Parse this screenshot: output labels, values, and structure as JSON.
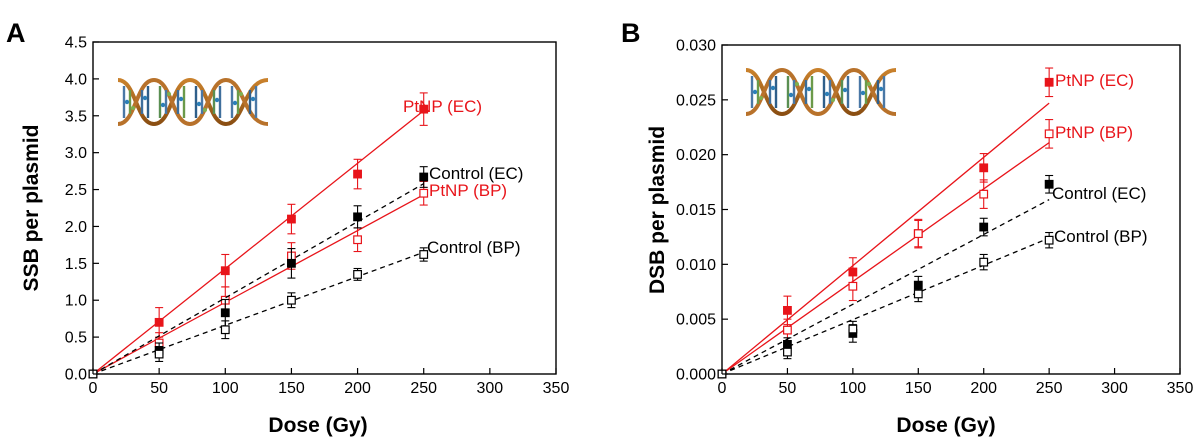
{
  "colors": {
    "ptnp": "#e8141a",
    "control": "#000000"
  },
  "chart_data": [
    {
      "panel": "A",
      "type": "scatter",
      "xlabel": "Dose (Gy)",
      "ylabel": "SSB per plasmid",
      "xlim": [
        0,
        350
      ],
      "ylim": [
        0,
        4.5
      ],
      "xticks": [
        "0",
        "50",
        "100",
        "150",
        "200",
        "250",
        "300",
        "350"
      ],
      "yticks": [
        "0.0",
        "0.5",
        "1.0",
        "1.5",
        "2.0",
        "2.5",
        "3.0",
        "3.5",
        "4.0",
        "4.5"
      ],
      "inset": "dna-double-helix",
      "series": [
        {
          "name": "PtNP (EC)",
          "color": "#e8141a",
          "marker": "filled-square",
          "line": "solid",
          "fit_end": 3.57,
          "points": [
            [
              0,
              0
            ],
            [
              50,
              0.7
            ],
            [
              100,
              1.4
            ],
            [
              150,
              2.1
            ],
            [
              200,
              2.71
            ],
            [
              250,
              3.59
            ]
          ],
          "errors": [
            0,
            0.2,
            0.22,
            0.2,
            0.2,
            0.22
          ]
        },
        {
          "name": "PtNP (BP)",
          "color": "#e8141a",
          "marker": "open-square",
          "line": "solid",
          "fit_end": 2.43,
          "points": [
            [
              0,
              0
            ],
            [
              50,
              0.42
            ],
            [
              100,
              1.0
            ],
            [
              150,
              1.6
            ],
            [
              200,
              1.82
            ],
            [
              250,
              2.45
            ]
          ],
          "errors": [
            0,
            0.14,
            0.18,
            0.18,
            0.16,
            0.16
          ]
        },
        {
          "name": "Control (EC)",
          "color": "#000000",
          "marker": "filled-square",
          "line": "dashed",
          "fit_end": 2.58,
          "points": [
            [
              0,
              0
            ],
            [
              50,
              0.32
            ],
            [
              100,
              0.83
            ],
            [
              150,
              1.5
            ],
            [
              200,
              2.13
            ],
            [
              250,
              2.67
            ]
          ],
          "errors": [
            0,
            0.1,
            0.18,
            0.2,
            0.15,
            0.14
          ]
        },
        {
          "name": "Control (BP)",
          "color": "#000000",
          "marker": "open-square",
          "line": "dashed",
          "fit_end": 1.65,
          "points": [
            [
              0,
              0
            ],
            [
              50,
              0.27
            ],
            [
              100,
              0.6
            ],
            [
              150,
              1.0
            ],
            [
              200,
              1.35
            ],
            [
              250,
              1.62
            ]
          ],
          "errors": [
            0,
            0.1,
            0.12,
            0.1,
            0.08,
            0.09
          ]
        }
      ]
    },
    {
      "panel": "B",
      "type": "scatter",
      "xlabel": "Dose (Gy)",
      "ylabel": "DSB per plasmid",
      "xlim": [
        0,
        350
      ],
      "ylim": [
        0,
        0.03
      ],
      "xticks": [
        "0",
        "50",
        "100",
        "150",
        "200",
        "250",
        "300",
        "350"
      ],
      "yticks": [
        "0.000",
        "0.005",
        "0.010",
        "0.015",
        "0.020",
        "0.025",
        "0.030"
      ],
      "inset": "dna-double-helix",
      "series": [
        {
          "name": "PtNP (EC)",
          "color": "#e8141a",
          "marker": "filled-square",
          "line": "solid",
          "fit_end": 0.0247,
          "points": [
            [
              0,
              0
            ],
            [
              50,
              0.0058
            ],
            [
              100,
              0.0093
            ],
            [
              150,
              0.0128
            ],
            [
              200,
              0.0188
            ],
            [
              250,
              0.0266
            ]
          ],
          "errors": [
            0,
            0.0013,
            0.0013,
            0.0013,
            0.0013,
            0.0013
          ]
        },
        {
          "name": "PtNP (BP)",
          "color": "#e8141a",
          "marker": "open-square",
          "line": "solid",
          "fit_end": 0.0211,
          "points": [
            [
              0,
              0
            ],
            [
              50,
              0.004
            ],
            [
              100,
              0.008
            ],
            [
              150,
              0.0128
            ],
            [
              200,
              0.0164
            ],
            [
              250,
              0.0219
            ]
          ],
          "errors": [
            0,
            0.001,
            0.0013,
            0.0012,
            0.0013,
            0.0013
          ]
        },
        {
          "name": "Control (EC)",
          "color": "#000000",
          "marker": "filled-square",
          "line": "dashed",
          "fit_end": 0.0159,
          "points": [
            [
              0,
              0
            ],
            [
              50,
              0.0027
            ],
            [
              100,
              0.0037
            ],
            [
              150,
              0.0081
            ],
            [
              200,
              0.0134
            ],
            [
              250,
              0.0173
            ]
          ],
          "errors": [
            0,
            0.0006,
            0.0008,
            0.0008,
            0.0008,
            0.0008
          ]
        },
        {
          "name": "Control (BP)",
          "color": "#000000",
          "marker": "open-square",
          "line": "dashed",
          "fit_end": 0.0124,
          "points": [
            [
              0,
              0
            ],
            [
              50,
              0.002
            ],
            [
              100,
              0.0041
            ],
            [
              150,
              0.0073
            ],
            [
              200,
              0.0102
            ],
            [
              250,
              0.0122
            ]
          ],
          "errors": [
            0,
            0.0006,
            0.0007,
            0.0007,
            0.0007,
            0.0007
          ]
        }
      ]
    }
  ]
}
